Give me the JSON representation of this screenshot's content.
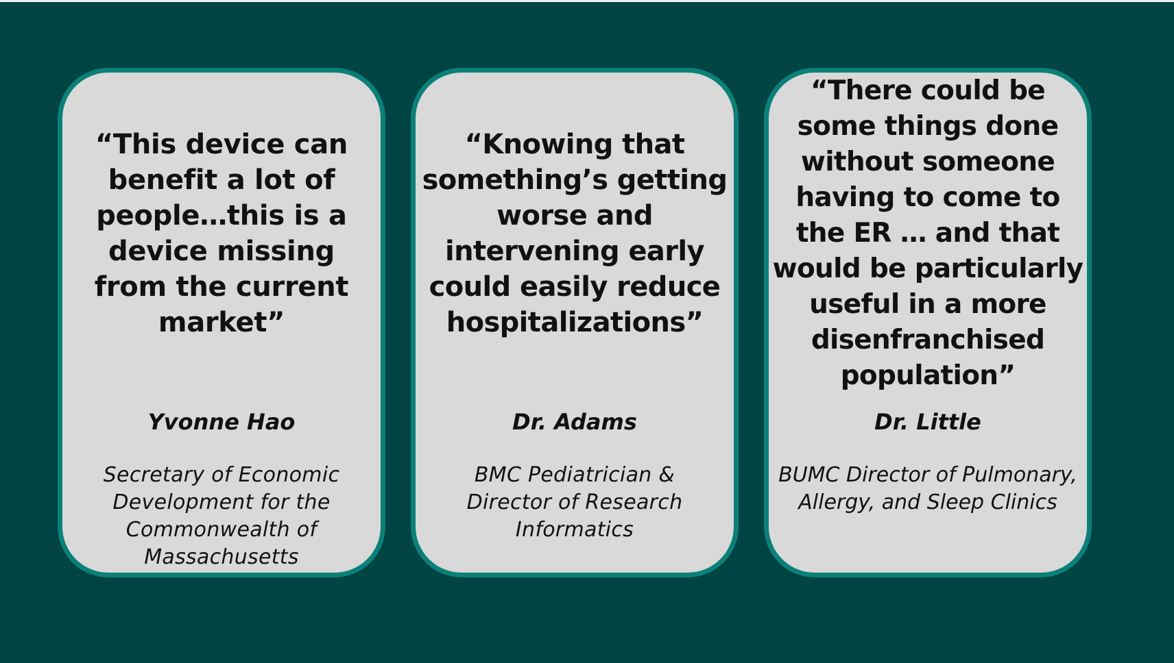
{
  "slide": {
    "colors": {
      "background": "#004444",
      "card_fill": "#d9d9d9",
      "card_border": "#0b8078",
      "text": "#111111"
    },
    "cards": [
      {
        "quote": "“This device can benefit a lot of people…this is a device missing from the current market”",
        "name": "Yvonne Hao",
        "role": "Secretary of Economic Development for the Commonwealth of Massachusetts"
      },
      {
        "quote": "“Knowing that something’s getting worse and intervening early could easily reduce hospitalizations”",
        "name": "Dr. Adams",
        "role": "BMC Pediatrician & Director of Research Informatics"
      },
      {
        "quote": "“There could be some things done without someone having to come to the ER … and that would be particularly useful in a more disenfranchised population”",
        "name": "Dr. Little",
        "role": "BUMC Director of Pulmonary, Allergy, and Sleep Clinics"
      }
    ]
  }
}
